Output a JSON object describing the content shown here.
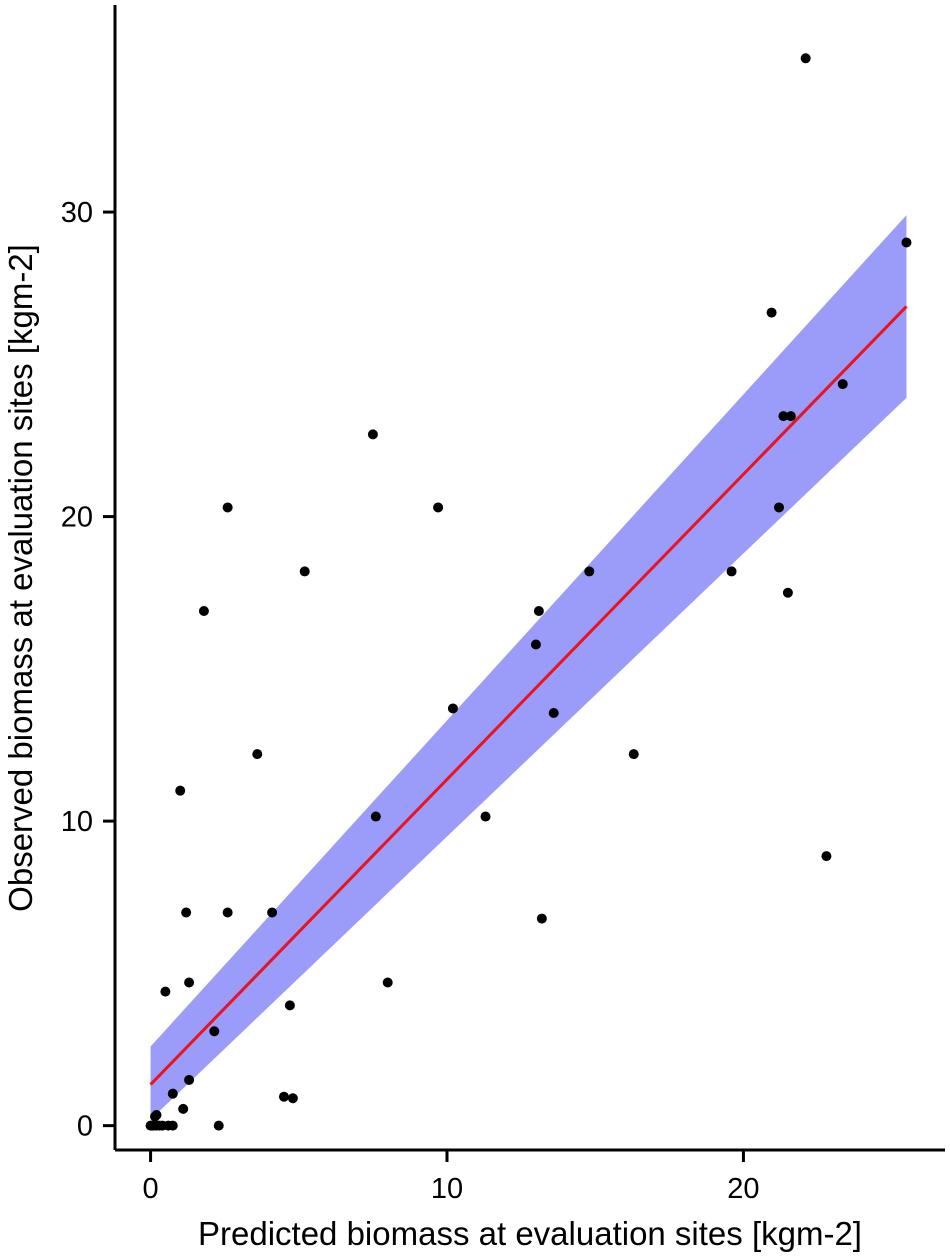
{
  "chart_data": {
    "type": "scatter",
    "title": "",
    "xlabel": "Predicted biomass at evaluation sites [kgm-2]",
    "ylabel": "Observed biomass at evaluation sites [kgm-2]",
    "xlim": [
      -1.2,
      26.8
    ],
    "ylim": [
      -0.8,
      36.8
    ],
    "x_ticks": [
      0,
      10,
      20
    ],
    "y_ticks": [
      0,
      10,
      20,
      30
    ],
    "x_tick_labels": [
      "0",
      "10",
      "20"
    ],
    "y_tick_labels": [
      "0",
      "10",
      "20",
      "30"
    ],
    "grid": false,
    "colors": {
      "points": "#000000",
      "fit_line": "#e8141e",
      "confidence_band": "#9b9bf9"
    },
    "fit": {
      "x_range": [
        0,
        25.5
      ],
      "line": [
        1.35,
        26.9
      ],
      "band_upper": [
        2.6,
        29.9
      ],
      "band_lower": [
        0.2,
        23.9
      ]
    },
    "points": [
      {
        "x": 0.0,
        "y": 0.0
      },
      {
        "x": 0.05,
        "y": 0.0
      },
      {
        "x": 0.1,
        "y": 0.0
      },
      {
        "x": 0.2,
        "y": 0.0
      },
      {
        "x": 0.3,
        "y": 0.0
      },
      {
        "x": 0.4,
        "y": 0.0
      },
      {
        "x": 0.6,
        "y": 0.0
      },
      {
        "x": 0.75,
        "y": 0.0
      },
      {
        "x": 2.3,
        "y": 0.0
      },
      {
        "x": 0.2,
        "y": 0.35
      },
      {
        "x": 0.15,
        "y": 0.3
      },
      {
        "x": 1.1,
        "y": 0.55
      },
      {
        "x": 0.75,
        "y": 1.05
      },
      {
        "x": 1.3,
        "y": 1.5
      },
      {
        "x": 4.5,
        "y": 0.95
      },
      {
        "x": 4.8,
        "y": 0.9
      },
      {
        "x": 2.15,
        "y": 3.1
      },
      {
        "x": 4.7,
        "y": 3.95
      },
      {
        "x": 0.5,
        "y": 4.4
      },
      {
        "x": 1.3,
        "y": 4.7
      },
      {
        "x": 8.0,
        "y": 4.7
      },
      {
        "x": 1.2,
        "y": 7.0
      },
      {
        "x": 2.6,
        "y": 7.0
      },
      {
        "x": 4.1,
        "y": 7.0
      },
      {
        "x": 13.2,
        "y": 6.8
      },
      {
        "x": 1.0,
        "y": 11.0
      },
      {
        "x": 3.6,
        "y": 12.2
      },
      {
        "x": 7.6,
        "y": 10.15
      },
      {
        "x": 11.3,
        "y": 10.15
      },
      {
        "x": 16.3,
        "y": 12.2
      },
      {
        "x": 22.8,
        "y": 8.85
      },
      {
        "x": 10.2,
        "y": 13.7
      },
      {
        "x": 13.6,
        "y": 13.55
      },
      {
        "x": 13.0,
        "y": 15.8
      },
      {
        "x": 13.1,
        "y": 16.9
      },
      {
        "x": 1.8,
        "y": 16.9
      },
      {
        "x": 5.2,
        "y": 18.2
      },
      {
        "x": 14.8,
        "y": 18.2
      },
      {
        "x": 19.6,
        "y": 18.2
      },
      {
        "x": 21.5,
        "y": 17.5
      },
      {
        "x": 2.6,
        "y": 20.3
      },
      {
        "x": 9.7,
        "y": 20.3
      },
      {
        "x": 21.2,
        "y": 20.3
      },
      {
        "x": 7.5,
        "y": 22.7
      },
      {
        "x": 21.35,
        "y": 23.3
      },
      {
        "x": 21.6,
        "y": 23.3
      },
      {
        "x": 23.35,
        "y": 24.35
      },
      {
        "x": 20.95,
        "y": 26.7
      },
      {
        "x": 25.5,
        "y": 29.0
      },
      {
        "x": 22.1,
        "y": 35.05
      }
    ]
  }
}
